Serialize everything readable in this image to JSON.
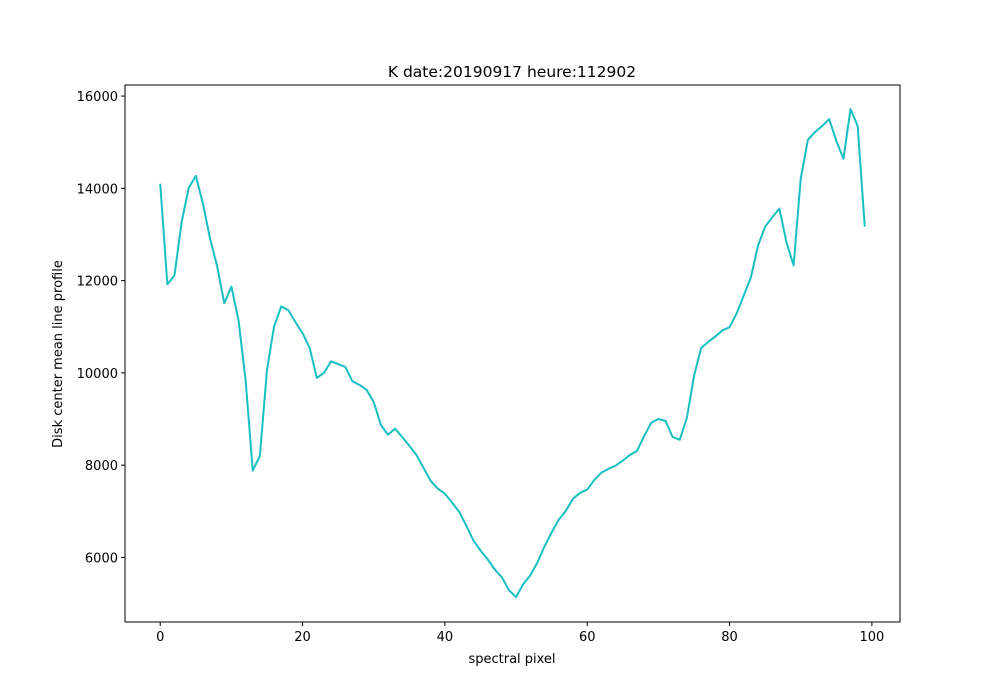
{
  "chart_data": {
    "type": "line",
    "title": "K date:20190917 heure:112902",
    "x_label": "spectral pixel",
    "y_label": "Disk center mean line profile",
    "x": [
      0,
      1,
      2,
      3,
      4,
      5,
      6,
      7,
      8,
      9,
      10,
      11,
      12,
      13,
      14,
      15,
      16,
      17,
      18,
      19,
      20,
      21,
      22,
      23,
      24,
      25,
      26,
      27,
      28,
      29,
      30,
      31,
      32,
      33,
      34,
      35,
      36,
      37,
      38,
      39,
      40,
      41,
      42,
      43,
      44,
      45,
      46,
      47,
      48,
      49,
      50,
      51,
      52,
      53,
      54,
      55,
      56,
      57,
      58,
      59,
      60,
      61,
      62,
      63,
      64,
      65,
      66,
      67,
      68,
      69,
      70,
      71,
      72,
      73,
      74,
      75,
      76,
      77,
      78,
      79,
      80,
      81,
      82,
      83,
      84,
      85,
      86,
      87,
      88,
      89,
      90,
      91,
      92,
      93,
      94,
      95,
      96,
      97,
      98,
      99
    ],
    "values": [
      14100,
      11920,
      12110,
      13260,
      14010,
      14270,
      13670,
      12910,
      12310,
      11510,
      11870,
      11140,
      9840,
      7880,
      8200,
      10060,
      11010,
      11440,
      11360,
      11100,
      10860,
      10540,
      9890,
      10000,
      10250,
      10190,
      10130,
      9820,
      9740,
      9630,
      9370,
      8870,
      8660,
      8790,
      8610,
      8420,
      8220,
      7940,
      7660,
      7490,
      7380,
      7190,
      6990,
      6690,
      6370,
      6150,
      5960,
      5740,
      5570,
      5290,
      5140,
      5420,
      5610,
      5890,
      6240,
      6540,
      6820,
      7010,
      7270,
      7400,
      7470,
      7680,
      7840,
      7920,
      7990,
      8100,
      8220,
      8310,
      8630,
      8920,
      9000,
      8960,
      8610,
      8550,
      9020,
      9930,
      10540,
      10670,
      10790,
      10920,
      10990,
      11290,
      11680,
      12070,
      12760,
      13170,
      13370,
      13560,
      12830,
      12330,
      14210,
      15050,
      15220,
      15350,
      15500,
      15030,
      14640,
      15720,
      15350,
      13170
    ],
    "color": "#17bfc2",
    "xlim": [
      -4.95,
      103.95
    ],
    "ylim": [
      4600,
      16240
    ],
    "xticks": [
      0,
      20,
      40,
      60,
      80,
      100
    ],
    "yticks": [
      6000,
      8000,
      10000,
      12000,
      14000,
      16000
    ]
  }
}
